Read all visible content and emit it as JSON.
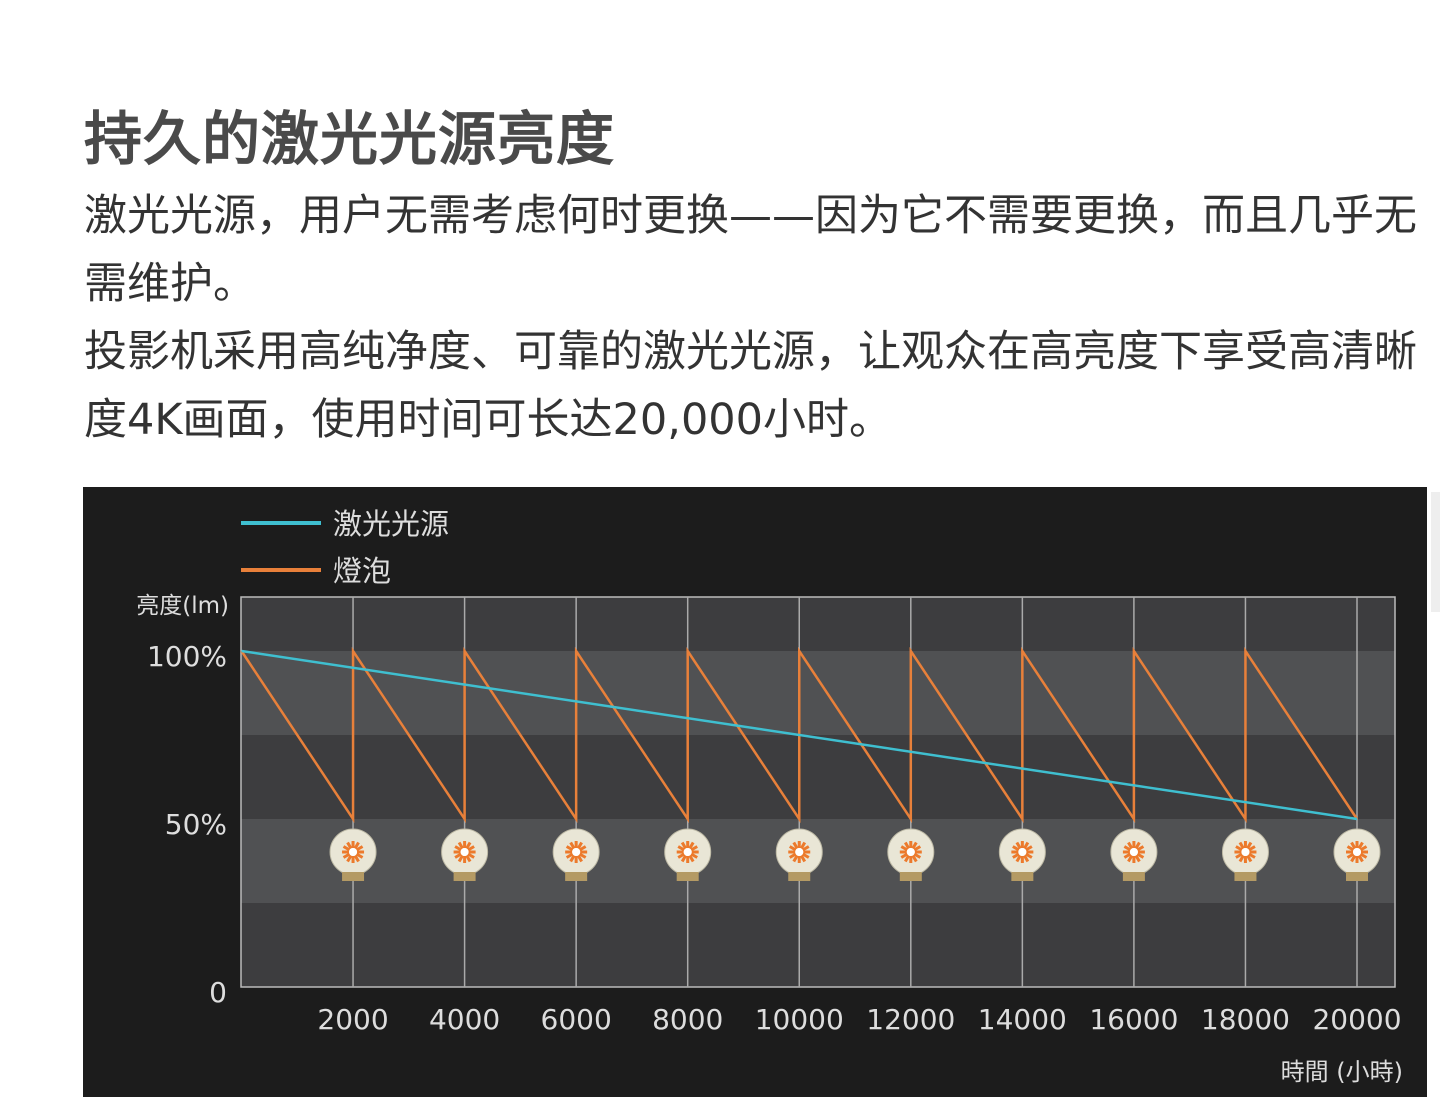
{
  "title": "持久的激光光源亮度",
  "paragraphs": [
    "激光光源，用户无需考虑何时更换——因为它不需要更换，而且几乎无需维护。",
    "投影机采用高纯净度、可靠的激光光源，让观众在高亮度下享受高清晰度4K画面，使用时间可长达20,000小时。"
  ],
  "chart_data": {
    "type": "line",
    "ylabel": "亮度(lm)",
    "xlabel": "時間 (小時)",
    "y_ticks": [
      "0",
      "50%",
      "100%"
    ],
    "x_ticks": [
      "2000",
      "4000",
      "6000",
      "8000",
      "10000",
      "12000",
      "14000",
      "16000",
      "18000",
      "20000"
    ],
    "legend_position": "top-left",
    "grid": true,
    "series": [
      {
        "name": "激光光源",
        "color": "#3fbfd0",
        "points": [
          [
            0,
            100
          ],
          [
            20000,
            50
          ]
        ]
      },
      {
        "name": "燈泡",
        "color": "#e8803a",
        "points": [
          [
            0,
            100
          ],
          [
            2000,
            50
          ],
          [
            2000,
            100
          ],
          [
            4000,
            50
          ],
          [
            4000,
            100
          ],
          [
            6000,
            50
          ],
          [
            6000,
            100
          ],
          [
            8000,
            50
          ],
          [
            8000,
            100
          ],
          [
            10000,
            50
          ],
          [
            10000,
            100
          ],
          [
            12000,
            50
          ],
          [
            12000,
            100
          ],
          [
            14000,
            50
          ],
          [
            14000,
            100
          ],
          [
            16000,
            50
          ],
          [
            16000,
            100
          ],
          [
            18000,
            50
          ],
          [
            18000,
            100
          ],
          [
            20000,
            50
          ]
        ]
      }
    ],
    "annotations": {
      "bulb_replacement_icon": "light-bulb-icon",
      "bulb_icon_at_x": [
        2000,
        4000,
        6000,
        8000,
        10000,
        12000,
        14000,
        16000,
        18000,
        20000
      ]
    }
  }
}
